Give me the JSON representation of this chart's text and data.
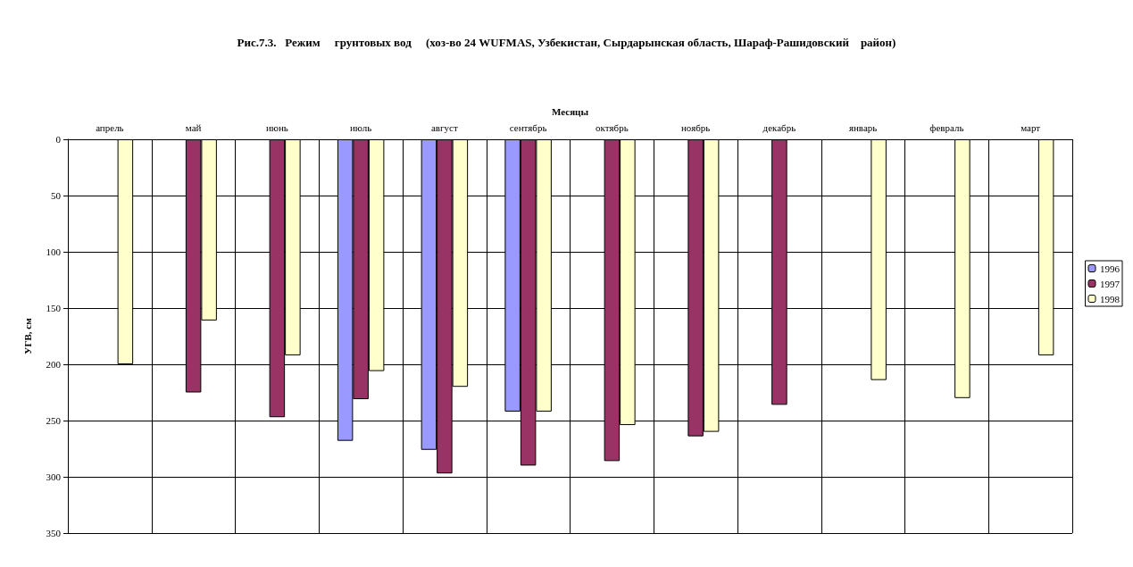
{
  "chart_data": {
    "type": "bar",
    "title": "Рис.7.3.   Режим     грунтовых вод     (хоз-во 24 WUFMAS, Узбекистан, Сырдарынская область, Шараф-Рашидовский    район)",
    "xlabel": "Месяцы",
    "ylabel": "УГВ, см",
    "categories": [
      "апрель",
      "май",
      "июнь",
      "июль",
      "август",
      "сентябрь",
      "октябрь",
      "ноябрь",
      "декабрь",
      "январь",
      "февраль",
      "март"
    ],
    "series": [
      {
        "name": "1996",
        "color": "#9999ff",
        "values": [
          null,
          null,
          null,
          268,
          276,
          242,
          null,
          null,
          null,
          null,
          null,
          null
        ]
      },
      {
        "name": "1997",
        "color": "#993366",
        "values": [
          null,
          225,
          247,
          231,
          297,
          290,
          286,
          264,
          236,
          null,
          null,
          null
        ]
      },
      {
        "name": "1998",
        "color": "#ffffcc",
        "values": [
          200,
          161,
          192,
          206,
          220,
          242,
          254,
          260,
          null,
          214,
          230,
          192
        ]
      }
    ],
    "ylim": [
      350,
      0
    ],
    "yticks": [
      0,
      50,
      100,
      150,
      200,
      250,
      300,
      350
    ],
    "grid": true,
    "legend": "right"
  }
}
